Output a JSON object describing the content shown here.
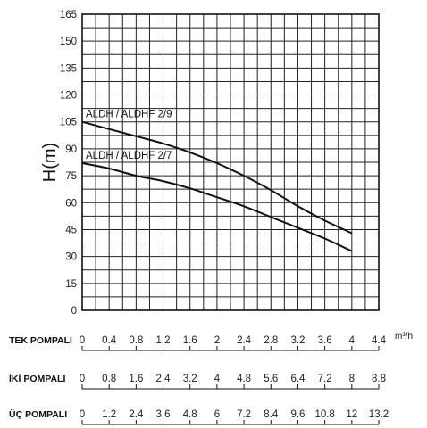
{
  "chart_data": {
    "type": "line",
    "ylabel": "H(m)",
    "x_unit": "m³/h",
    "yticks": [
      0,
      15,
      30,
      45,
      60,
      75,
      90,
      105,
      120,
      135,
      150,
      165
    ],
    "ylim": [
      0,
      165
    ],
    "xlim": [
      0,
      4.4
    ],
    "grid": true,
    "x_scales": [
      {
        "label": "TEK POMPALI",
        "ticks": [
          "0",
          "0.4",
          "0.8",
          "1.2",
          "1.6",
          "2",
          "2.4",
          "2.8",
          "3.2",
          "3.6",
          "4",
          "4.4"
        ]
      },
      {
        "label": "İKİ POMPALI",
        "ticks": [
          "0",
          "0.8",
          "1.6",
          "2.4",
          "3.2",
          "4",
          "4.8",
          "5.6",
          "6.4",
          "7.2",
          "8",
          "8.8"
        ]
      },
      {
        "label": "ÜÇ POMPALI",
        "ticks": [
          "0",
          "1.2",
          "2.4",
          "3.6",
          "4.8",
          "6",
          "7.2",
          "8.4",
          "9.6",
          "10.8",
          "12",
          "13.2"
        ]
      }
    ],
    "series": [
      {
        "name": "ALDH / ALDHF 2/9",
        "x": [
          0,
          0.4,
          0.8,
          1.2,
          1.6,
          2.0,
          2.4,
          2.8,
          3.2,
          3.6,
          4.0
        ],
        "y": [
          105,
          101,
          97,
          93,
          88,
          82,
          75,
          67,
          58,
          50,
          43
        ]
      },
      {
        "name": "ALDH / ALDHF 2/7",
        "x": [
          0,
          0.4,
          0.8,
          1.2,
          1.6,
          2.0,
          2.4,
          2.8,
          3.2,
          3.6,
          4.0
        ],
        "y": [
          82,
          79,
          75,
          72,
          68,
          63,
          58,
          52,
          46,
          40,
          33
        ]
      }
    ]
  }
}
